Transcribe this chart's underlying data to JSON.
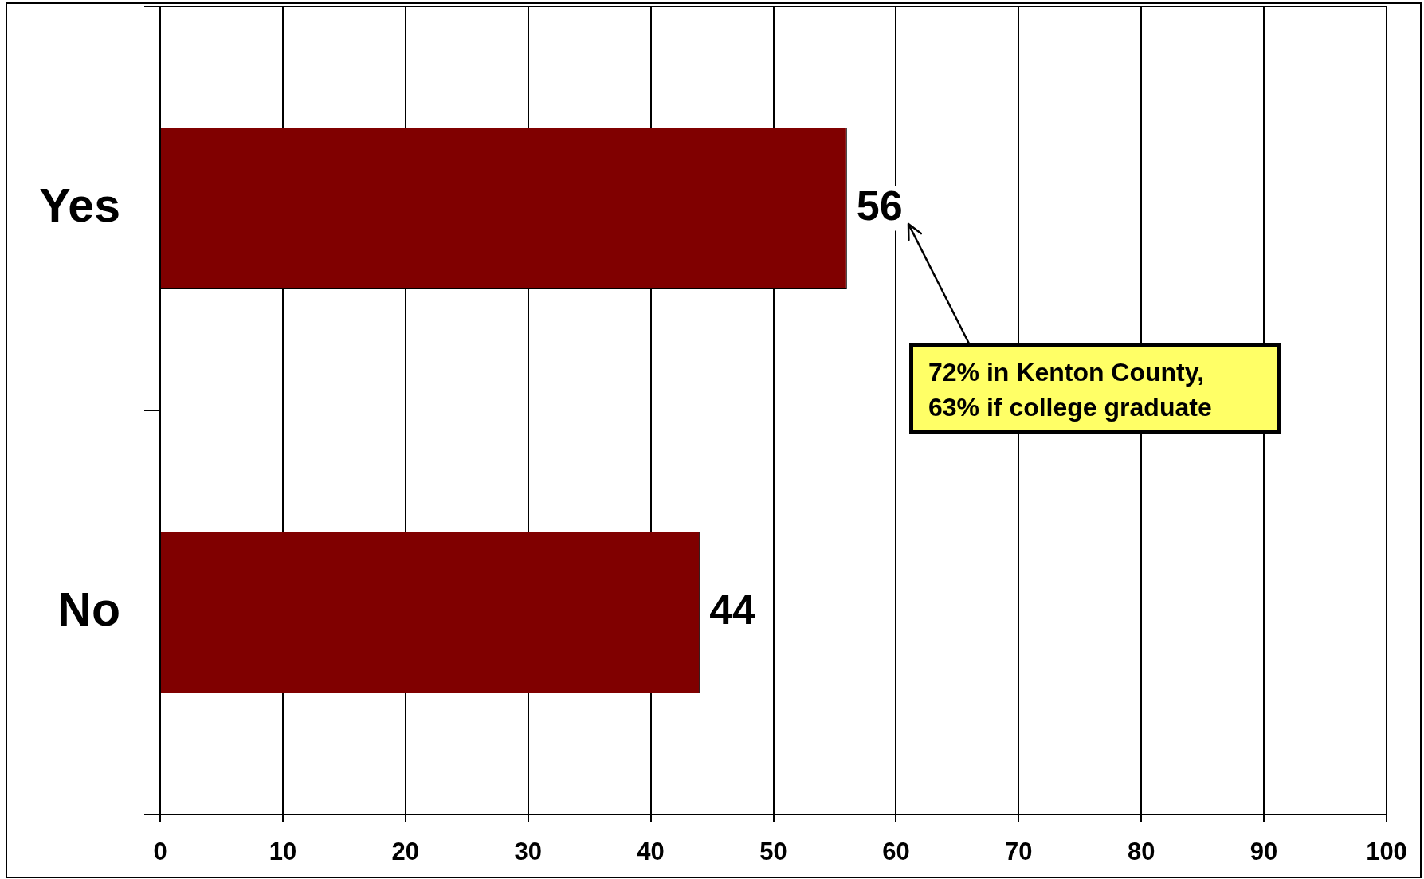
{
  "chart_data": {
    "type": "bar",
    "orientation": "horizontal",
    "categories": [
      "Yes",
      "No"
    ],
    "values": [
      56,
      44
    ],
    "color": "#800000",
    "xlim": [
      0,
      100
    ],
    "xticks": [
      0,
      10,
      20,
      30,
      40,
      50,
      60,
      70,
      80,
      90,
      100
    ],
    "grid": "x",
    "data_labels": true,
    "annotations": [
      "72% in Kenton County,\n63% if college graduate"
    ]
  }
}
